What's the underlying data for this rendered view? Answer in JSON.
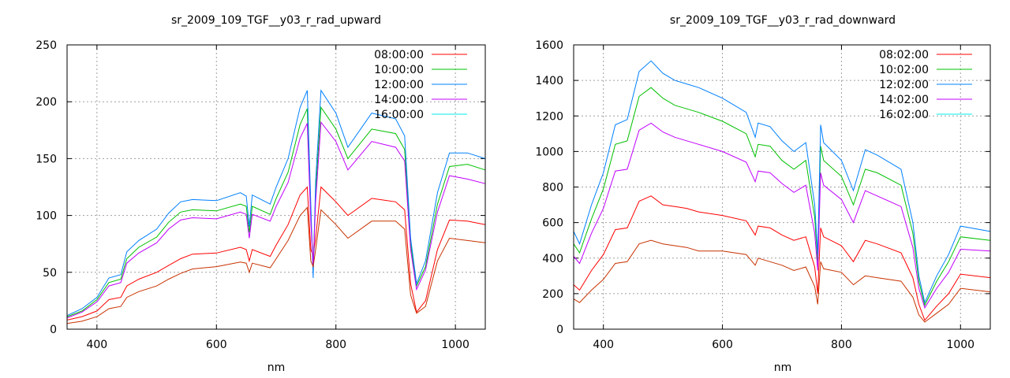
{
  "chart_data": [
    {
      "type": "line",
      "title": "sr_2009_109_TGF__y03_r_rad_upward",
      "xlabel": "nm",
      "ylabel": "",
      "xlim": [
        350,
        1050
      ],
      "ylim": [
        0,
        250
      ],
      "xticks": [
        400,
        600,
        800,
        1000
      ],
      "yticks": [
        0,
        50,
        100,
        150,
        200,
        250
      ],
      "grid": true,
      "legend_position": "top-right",
      "x": [
        350,
        375,
        400,
        420,
        440,
        450,
        470,
        500,
        520,
        540,
        560,
        600,
        640,
        650,
        655,
        660,
        690,
        700,
        720,
        740,
        752,
        758,
        762,
        766,
        775,
        800,
        820,
        860,
        900,
        915,
        925,
        935,
        950,
        970,
        990,
        1020,
        1050
      ],
      "series": [
        {
          "name": "08:00:00",
          "legend_color": "#ff0000",
          "line_color": "#ff0000",
          "values": [
            8,
            11,
            16,
            26,
            28,
            38,
            44,
            50,
            56,
            62,
            66,
            67,
            72,
            70,
            60,
            70,
            64,
            74,
            92,
            118,
            125,
            70,
            65,
            80,
            125,
            112,
            100,
            115,
            112,
            105,
            40,
            15,
            25,
            70,
            96,
            95,
            92
          ]
        },
        {
          "name": "10:00:00",
          "legend_color": "#00c000",
          "line_color": "#00c000",
          "values": [
            11,
            16,
            26,
            41,
            44,
            62,
            72,
            81,
            94,
            103,
            105,
            104,
            110,
            108,
            85,
            108,
            101,
            115,
            138,
            180,
            194,
            100,
            55,
            120,
            195,
            176,
            150,
            176,
            172,
            158,
            75,
            38,
            55,
            110,
            143,
            145,
            140
          ]
        },
        {
          "name": "12:00:00",
          "legend_color": "#0080ff",
          "line_color": "#0080ff",
          "values": [
            12,
            18,
            28,
            45,
            48,
            68,
            78,
            88,
            102,
            112,
            114,
            113,
            120,
            117,
            90,
            118,
            110,
            125,
            150,
            195,
            210,
            110,
            45,
            130,
            210,
            190,
            160,
            190,
            185,
            170,
            80,
            40,
            60,
            120,
            155,
            155,
            150
          ]
        },
        {
          "name": "14:00:00",
          "legend_color": "#c000ff",
          "line_color": "#c000ff",
          "values": [
            10,
            15,
            24,
            38,
            41,
            58,
            67,
            76,
            88,
            96,
            98,
            97,
            103,
            101,
            80,
            101,
            95,
            108,
            129,
            168,
            181,
            95,
            55,
            112,
            182,
            165,
            140,
            165,
            160,
            148,
            70,
            35,
            52,
            103,
            135,
            132,
            128
          ]
        },
        {
          "name": "16:00:00",
          "legend_color": "#00eeee",
          "line_color": "#c83200",
          "values": [
            5,
            7,
            11,
            18,
            20,
            28,
            33,
            38,
            44,
            49,
            53,
            55,
            59,
            58,
            50,
            58,
            54,
            62,
            78,
            100,
            107,
            60,
            55,
            70,
            105,
            92,
            80,
            95,
            95,
            88,
            30,
            14,
            20,
            60,
            80,
            78,
            76
          ]
        }
      ]
    },
    {
      "type": "line",
      "title": "sr_2009_109_TGF__y03_r_rad_downward",
      "xlabel": "nm",
      "ylabel": "",
      "xlim": [
        350,
        1050
      ],
      "ylim": [
        0,
        1600
      ],
      "xticks": [
        400,
        600,
        800,
        1000
      ],
      "yticks": [
        0,
        200,
        400,
        600,
        800,
        1000,
        1200,
        1400,
        1600
      ],
      "grid": true,
      "legend_position": "top-right",
      "x": [
        350,
        360,
        380,
        400,
        420,
        440,
        460,
        480,
        500,
        520,
        540,
        560,
        600,
        640,
        655,
        660,
        680,
        700,
        720,
        740,
        755,
        760,
        765,
        770,
        800,
        820,
        840,
        860,
        900,
        920,
        930,
        940,
        960,
        980,
        1000,
        1050
      ],
      "series": [
        {
          "name": "08:02:00",
          "legend_color": "#ff0000",
          "line_color": "#ff0000",
          "values": [
            250,
            220,
            330,
            420,
            560,
            570,
            720,
            750,
            700,
            690,
            680,
            660,
            640,
            610,
            530,
            580,
            570,
            530,
            500,
            520,
            350,
            200,
            570,
            520,
            470,
            380,
            500,
            480,
            430,
            290,
            140,
            50,
            130,
            200,
            310,
            290
          ]
        },
        {
          "name": "10:02:00",
          "legend_color": "#00c000",
          "line_color": "#00c000",
          "values": [
            480,
            430,
            620,
            790,
            1040,
            1060,
            1310,
            1360,
            1300,
            1260,
            1240,
            1220,
            1170,
            1100,
            970,
            1040,
            1030,
            950,
            900,
            950,
            630,
            380,
            1030,
            950,
            860,
            700,
            900,
            880,
            810,
            540,
            270,
            135,
            270,
            380,
            520,
            500
          ]
        },
        {
          "name": "12:02:00",
          "legend_color": "#0080ff",
          "line_color": "#0080ff",
          "values": [
            550,
            480,
            700,
            880,
            1150,
            1180,
            1450,
            1510,
            1440,
            1400,
            1380,
            1360,
            1300,
            1220,
            1080,
            1160,
            1140,
            1060,
            1000,
            1050,
            700,
            420,
            1150,
            1050,
            950,
            780,
            1010,
            980,
            900,
            600,
            300,
            150,
            300,
            420,
            580,
            550
          ]
        },
        {
          "name": "14:02:00",
          "legend_color": "#c000ff",
          "line_color": "#c000ff",
          "values": [
            410,
            370,
            540,
            680,
            890,
            900,
            1120,
            1160,
            1110,
            1080,
            1060,
            1040,
            1000,
            940,
            830,
            890,
            880,
            820,
            770,
            810,
            540,
            330,
            880,
            810,
            730,
            600,
            780,
            750,
            690,
            460,
            230,
            120,
            230,
            320,
            450,
            440
          ]
        },
        {
          "name": "16:02:00",
          "legend_color": "#00eeee",
          "line_color": "#c83200",
          "values": [
            170,
            150,
            220,
            280,
            370,
            380,
            480,
            500,
            480,
            470,
            460,
            440,
            440,
            420,
            360,
            400,
            380,
            360,
            330,
            350,
            240,
            140,
            380,
            340,
            320,
            250,
            300,
            290,
            270,
            180,
            80,
            40,
            90,
            140,
            230,
            210
          ]
        }
      ]
    }
  ]
}
